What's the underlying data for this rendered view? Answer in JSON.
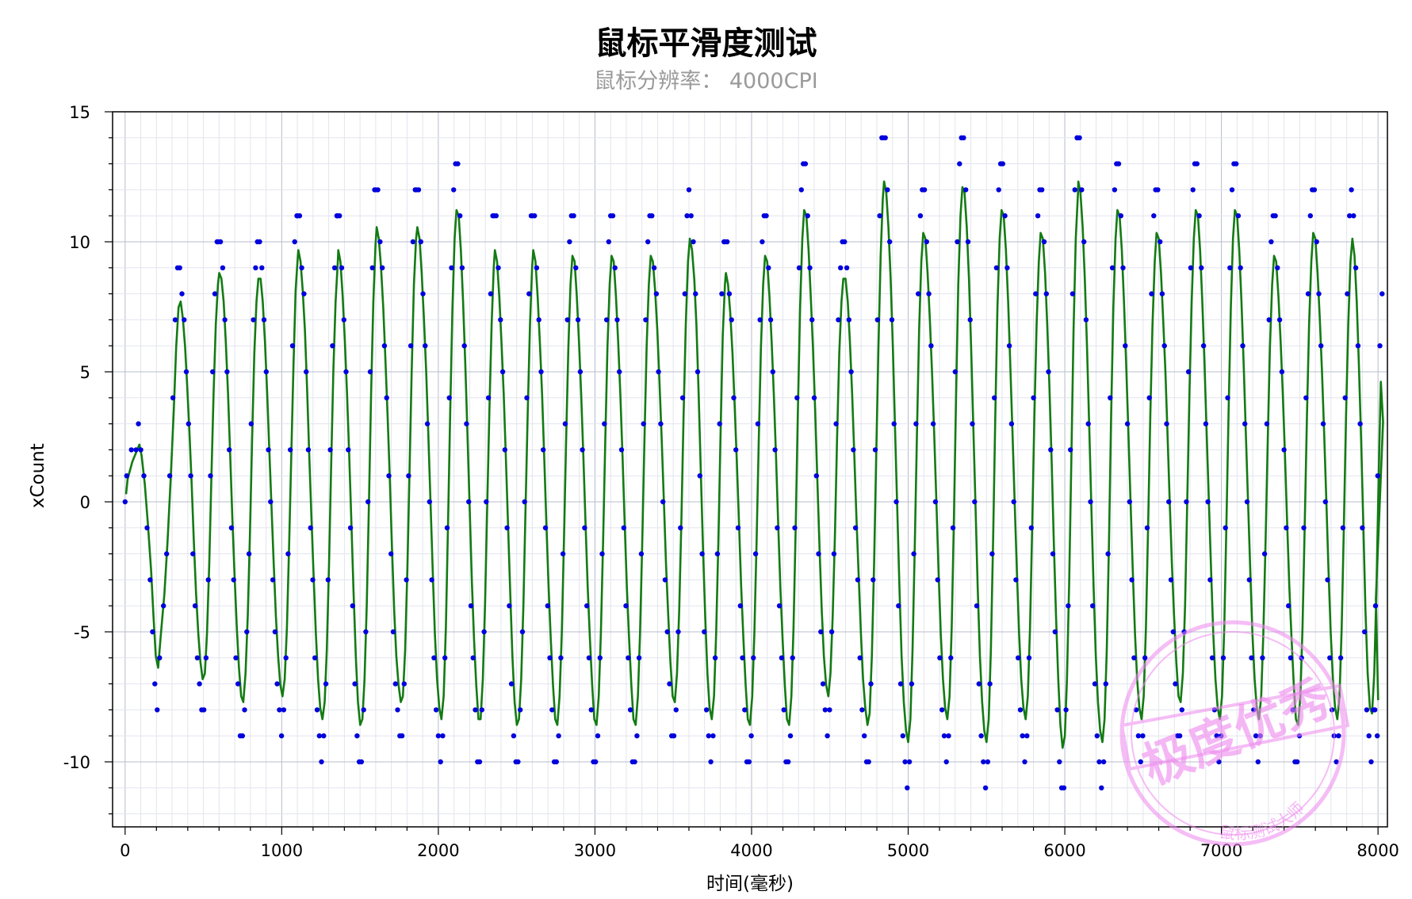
{
  "chart_data": {
    "type": "scatter",
    "title": "鼠标平滑度测试",
    "subtitle": "鼠标分辨率： 4000CPI",
    "xlabel": "时间(毫秒)",
    "ylabel": "xCount",
    "xlim": [
      -80,
      8060
    ],
    "ylim": [
      -12.5,
      15
    ],
    "xticks": [
      0,
      1000,
      2000,
      3000,
      4000,
      5000,
      6000,
      7000,
      8000
    ],
    "yticks": [
      -10,
      -5,
      0,
      5,
      10,
      15
    ],
    "grid": true,
    "series": [
      {
        "type": "scatter",
        "color": "#0000dd"
      },
      {
        "type": "line",
        "color": "#137b13"
      }
    ],
    "cycles": [
      {
        "t": 340,
        "peak": 9,
        "trough": -8
      },
      {
        "t": 595,
        "peak": 10,
        "trough": -9
      },
      {
        "t": 845,
        "peak": 10,
        "trough": -9
      },
      {
        "t": 1100,
        "peak": 11,
        "trough": -10
      },
      {
        "t": 1355,
        "peak": 11,
        "trough": -10
      },
      {
        "t": 1600,
        "peak": 12,
        "trough": -9
      },
      {
        "t": 1860,
        "peak": 12,
        "trough": -10
      },
      {
        "t": 2110,
        "peak": 13,
        "trough": -10
      },
      {
        "t": 2355,
        "peak": 11,
        "trough": -10
      },
      {
        "t": 2600,
        "peak": 11,
        "trough": -10
      },
      {
        "t": 2850,
        "peak": 11,
        "trough": -10
      },
      {
        "t": 3100,
        "peak": 11,
        "trough": -10
      },
      {
        "t": 3350,
        "peak": 11,
        "trough": -9
      },
      {
        "t": 3600,
        "peak": 12,
        "trough": -10
      },
      {
        "t": 3830,
        "peak": 10,
        "trough": -10
      },
      {
        "t": 4080,
        "peak": 11,
        "trough": -10
      },
      {
        "t": 4330,
        "peak": 13,
        "trough": -9
      },
      {
        "t": 4580,
        "peak": 10,
        "trough": -10
      },
      {
        "t": 4840,
        "peak": 14,
        "trough": -11
      },
      {
        "t": 5090,
        "peak": 12,
        "trough": -10
      },
      {
        "t": 5340,
        "peak": 14,
        "trough": -11
      },
      {
        "t": 5590,
        "peak": 13,
        "trough": -10
      },
      {
        "t": 5840,
        "peak": 12,
        "trough": -11
      },
      {
        "t": 6080,
        "peak": 14,
        "trough": -11
      },
      {
        "t": 6330,
        "peak": 13,
        "trough": -10
      },
      {
        "t": 6580,
        "peak": 12,
        "trough": -9
      },
      {
        "t": 6830,
        "peak": 13,
        "trough": -10
      },
      {
        "t": 7080,
        "peak": 13,
        "trough": -10
      },
      {
        "t": 7330,
        "peak": 11,
        "trough": -10
      },
      {
        "t": 7580,
        "peak": 12,
        "trough": -10
      },
      {
        "t": 7830,
        "peak": 12,
        "trough": -10
      }
    ],
    "start_points": [
      {
        "x": 0,
        "y": 0
      },
      {
        "x": 10,
        "y": 1
      },
      {
        "x": 40,
        "y": 2
      },
      {
        "x": 70,
        "y": 2
      },
      {
        "x": 85,
        "y": 3
      },
      {
        "x": 100,
        "y": 2
      },
      {
        "x": 120,
        "y": 1
      },
      {
        "x": 140,
        "y": -1
      },
      {
        "x": 160,
        "y": -3
      },
      {
        "x": 175,
        "y": -5
      },
      {
        "x": 190,
        "y": -7
      },
      {
        "x": 205,
        "y": -8
      },
      {
        "x": 220,
        "y": -6
      },
      {
        "x": 245,
        "y": -4
      },
      {
        "x": 265,
        "y": -2
      },
      {
        "x": 285,
        "y": 1
      },
      {
        "x": 305,
        "y": 4
      },
      {
        "x": 320,
        "y": 7
      }
    ]
  },
  "watermark": {
    "main_text": "极度优秀",
    "ring_text": "鼠标测试大师",
    "color": "#ee88ee"
  }
}
